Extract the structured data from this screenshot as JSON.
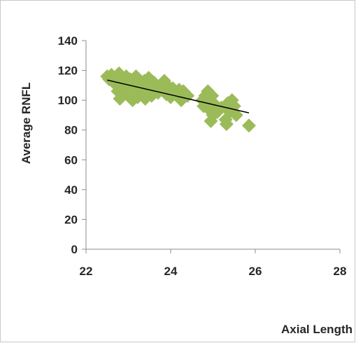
{
  "chart_data": {
    "type": "scatter",
    "xlabel": "Axial Length",
    "ylabel": "Average RNFL",
    "xlim": [
      22,
      28
    ],
    "ylim": [
      0,
      140
    ],
    "xticks": [
      22,
      24,
      26,
      28
    ],
    "yticks": [
      0,
      20,
      40,
      60,
      80,
      100,
      120,
      140
    ],
    "grid": false,
    "legend": "none",
    "marker_color": "#9bbb59",
    "trendline_color": "#000000",
    "trendline": {
      "x": [
        22.5,
        25.85
      ],
      "y": [
        113.5,
        91.5
      ]
    },
    "series": [
      {
        "points": [
          [
            22.5,
            116
          ],
          [
            22.55,
            114
          ],
          [
            22.6,
            117
          ],
          [
            22.65,
            112
          ],
          [
            22.7,
            115
          ],
          [
            22.72,
            110
          ],
          [
            22.75,
            106
          ],
          [
            22.78,
            118
          ],
          [
            22.8,
            101
          ],
          [
            22.85,
            113
          ],
          [
            22.88,
            108
          ],
          [
            22.9,
            104
          ],
          [
            22.95,
            116
          ],
          [
            22.98,
            111
          ],
          [
            23.0,
            103
          ],
          [
            23.05,
            114
          ],
          [
            23.08,
            107
          ],
          [
            23.1,
            100
          ],
          [
            23.12,
            112
          ],
          [
            23.15,
            105
          ],
          [
            23.18,
            116
          ],
          [
            23.2,
            109
          ],
          [
            23.22,
            102
          ],
          [
            23.25,
            114
          ],
          [
            23.28,
            107
          ],
          [
            23.3,
            111
          ],
          [
            23.35,
            104
          ],
          [
            23.38,
            113
          ],
          [
            23.4,
            101
          ],
          [
            23.45,
            109
          ],
          [
            23.48,
            115
          ],
          [
            23.5,
            106
          ],
          [
            23.55,
            103
          ],
          [
            23.6,
            112
          ],
          [
            23.65,
            108
          ],
          [
            23.7,
            105
          ],
          [
            23.75,
            110
          ],
          [
            23.8,
            107
          ],
          [
            23.85,
            113
          ],
          [
            23.9,
            104
          ],
          [
            23.95,
            109
          ],
          [
            24.0,
            102
          ],
          [
            24.05,
            108
          ],
          [
            24.1,
            105
          ],
          [
            24.15,
            103
          ],
          [
            24.2,
            107
          ],
          [
            24.25,
            100
          ],
          [
            24.3,
            106
          ],
          [
            24.35,
            104
          ],
          [
            24.4,
            103
          ],
          [
            24.75,
            100
          ],
          [
            24.78,
            96
          ],
          [
            24.82,
            103
          ],
          [
            24.85,
            98
          ],
          [
            24.88,
            106
          ],
          [
            24.9,
            94
          ],
          [
            24.92,
            100
          ],
          [
            24.95,
            86
          ],
          [
            24.98,
            103
          ],
          [
            25.0,
            90
          ],
          [
            25.05,
            97
          ],
          [
            25.1,
            92
          ],
          [
            25.2,
            95
          ],
          [
            25.3,
            87
          ],
          [
            25.32,
            84
          ],
          [
            25.35,
            98
          ],
          [
            25.4,
            92
          ],
          [
            25.45,
            100
          ],
          [
            25.5,
            96
          ],
          [
            25.55,
            90
          ],
          [
            25.85,
            83
          ]
        ]
      }
    ]
  }
}
